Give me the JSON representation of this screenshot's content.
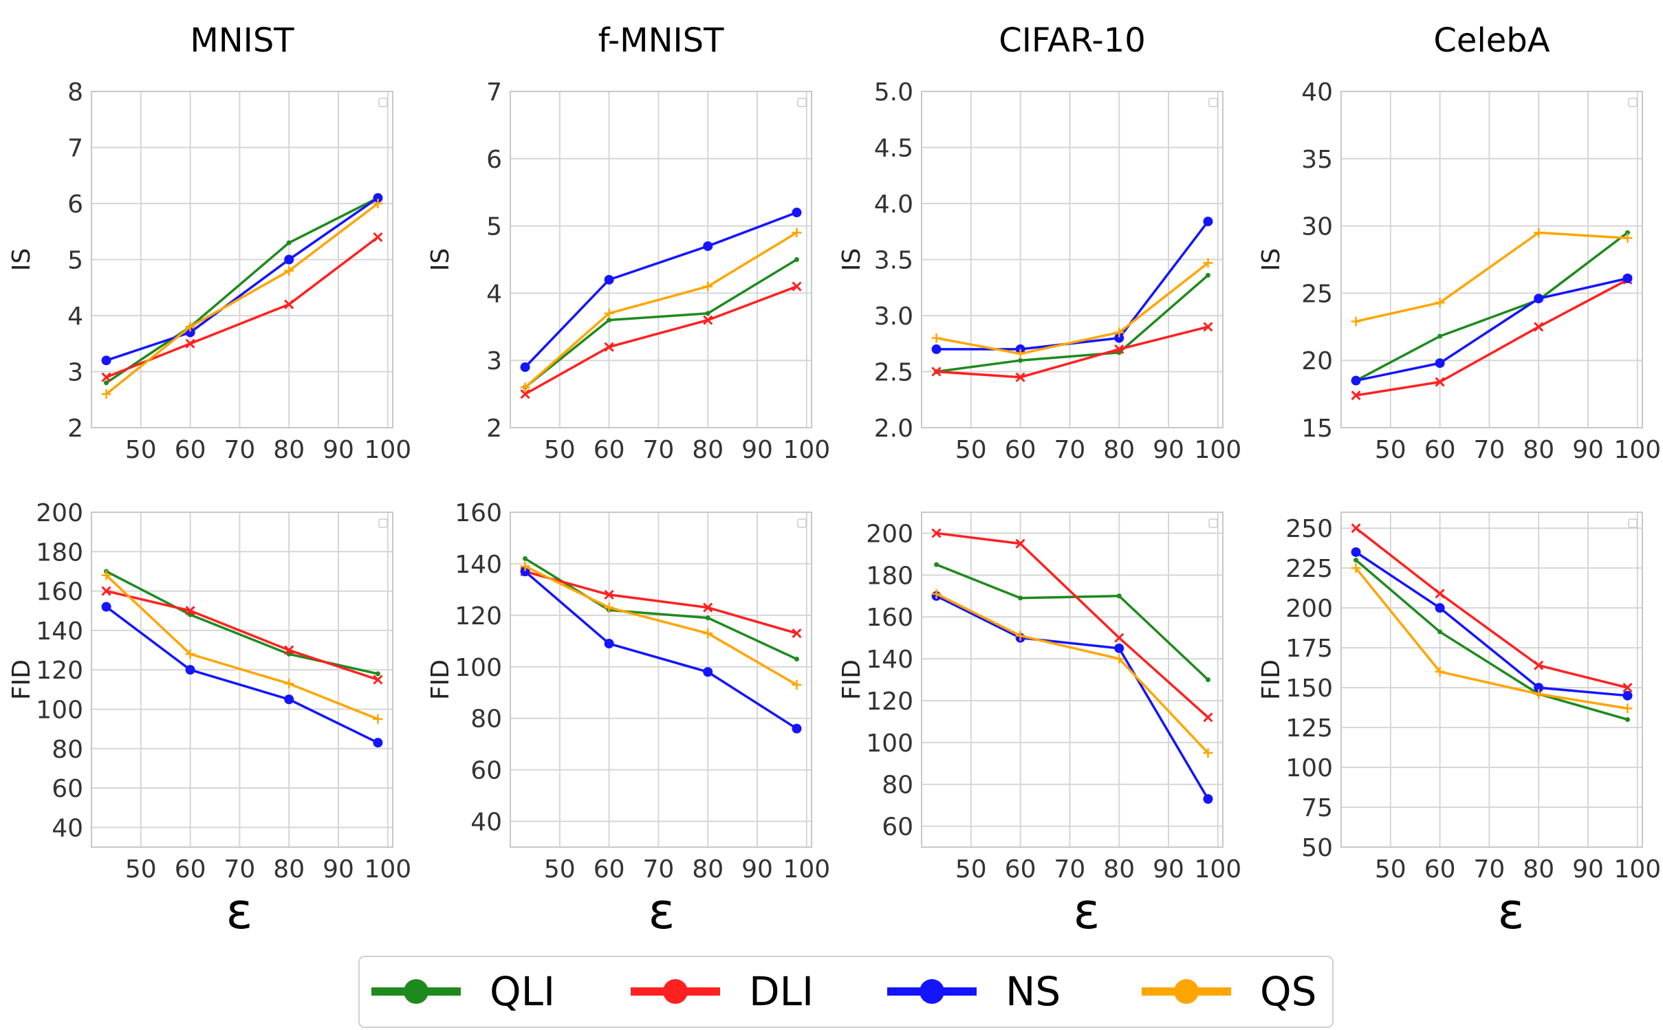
{
  "colors": {
    "QLI": "#1e8a1e",
    "DLI": "#ff2020",
    "NS": "#1414ff",
    "QS": "#ffa500",
    "grid": "#d6d6d6",
    "axis": "#c8c8c8",
    "text": "#333333"
  },
  "x_axis_symbol": "ε",
  "legend": {
    "entries": [
      "QLI",
      "DLI",
      "NS",
      "QS"
    ]
  },
  "chart_data": [
    {
      "type": "line",
      "row": 0,
      "col": 0,
      "title": "MNIST",
      "ylabel": "IS",
      "x": [
        43,
        60,
        80,
        98
      ],
      "xlim": [
        40,
        101
      ],
      "xticks": [
        50,
        60,
        70,
        80,
        90,
        100
      ],
      "ylim": [
        2,
        8
      ],
      "yticks": [
        "2",
        "3",
        "4",
        "5",
        "6",
        "7",
        "8"
      ],
      "grid": true,
      "series": [
        {
          "name": "QLI",
          "values": [
            2.8,
            3.8,
            5.3,
            6.1
          ]
        },
        {
          "name": "DLI",
          "values": [
            2.9,
            3.5,
            4.2,
            5.4
          ]
        },
        {
          "name": "NS",
          "values": [
            3.2,
            3.7,
            5.0,
            6.1
          ]
        },
        {
          "name": "QS",
          "values": [
            2.6,
            3.8,
            4.8,
            6.0
          ]
        }
      ]
    },
    {
      "type": "line",
      "row": 0,
      "col": 1,
      "title": "f-MNIST",
      "ylabel": "IS",
      "x": [
        43,
        60,
        80,
        98
      ],
      "xlim": [
        40,
        101
      ],
      "xticks": [
        50,
        60,
        70,
        80,
        90,
        100
      ],
      "ylim": [
        2,
        7
      ],
      "yticks": [
        "2",
        "3",
        "4",
        "5",
        "6",
        "7"
      ],
      "grid": true,
      "series": [
        {
          "name": "QLI",
          "values": [
            2.6,
            3.6,
            3.7,
            4.5
          ]
        },
        {
          "name": "DLI",
          "values": [
            2.5,
            3.2,
            3.6,
            4.1
          ]
        },
        {
          "name": "NS",
          "values": [
            2.9,
            4.2,
            4.7,
            5.2
          ]
        },
        {
          "name": "QS",
          "values": [
            2.6,
            3.7,
            4.1,
            4.9
          ]
        }
      ]
    },
    {
      "type": "line",
      "row": 0,
      "col": 2,
      "title": "CIFAR-10",
      "ylabel": "IS",
      "x": [
        43,
        60,
        80,
        98
      ],
      "xlim": [
        40,
        101
      ],
      "xticks": [
        50,
        60,
        70,
        80,
        90,
        100
      ],
      "ylim": [
        2.0,
        5.0
      ],
      "yticks": [
        "2.0",
        "2.5",
        "3.0",
        "3.5",
        "4.0",
        "4.5",
        "5.0"
      ],
      "grid": true,
      "series": [
        {
          "name": "QLI",
          "values": [
            2.5,
            2.6,
            2.67,
            3.36
          ]
        },
        {
          "name": "DLI",
          "values": [
            2.5,
            2.45,
            2.7,
            2.9
          ]
        },
        {
          "name": "NS",
          "values": [
            2.7,
            2.7,
            2.8,
            3.84
          ]
        },
        {
          "name": "QS",
          "values": [
            2.8,
            2.66,
            2.85,
            3.47
          ]
        }
      ]
    },
    {
      "type": "line",
      "row": 0,
      "col": 3,
      "title": "CelebA",
      "ylabel": "IS",
      "x": [
        43,
        60,
        80,
        98
      ],
      "xlim": [
        40,
        101
      ],
      "xticks": [
        50,
        60,
        70,
        80,
        90,
        100
      ],
      "ylim": [
        15,
        40
      ],
      "yticks": [
        "15",
        "20",
        "25",
        "30",
        "35",
        "40"
      ],
      "grid": true,
      "series": [
        {
          "name": "QLI",
          "values": [
            18.5,
            21.8,
            24.5,
            29.5
          ]
        },
        {
          "name": "DLI",
          "values": [
            17.4,
            18.4,
            22.5,
            26.0
          ]
        },
        {
          "name": "NS",
          "values": [
            18.5,
            19.8,
            24.6,
            26.1
          ]
        },
        {
          "name": "QS",
          "values": [
            22.9,
            24.3,
            29.5,
            29.1
          ]
        }
      ]
    },
    {
      "type": "line",
      "row": 1,
      "col": 0,
      "title": "",
      "ylabel": "FID",
      "x": [
        43,
        60,
        80,
        98
      ],
      "xlim": [
        40,
        101
      ],
      "xticks": [
        50,
        60,
        70,
        80,
        90,
        100
      ],
      "ylim": [
        30,
        200
      ],
      "yticks": [
        "40",
        "60",
        "80",
        "100",
        "120",
        "140",
        "160",
        "180",
        "200"
      ],
      "grid": true,
      "series": [
        {
          "name": "QLI",
          "values": [
            170,
            148,
            128,
            118
          ]
        },
        {
          "name": "DLI",
          "values": [
            160,
            150,
            130,
            115
          ]
        },
        {
          "name": "NS",
          "values": [
            152,
            120,
            105,
            83
          ]
        },
        {
          "name": "QS",
          "values": [
            168,
            128,
            113,
            95
          ]
        }
      ]
    },
    {
      "type": "line",
      "row": 1,
      "col": 1,
      "title": "",
      "ylabel": "FID",
      "x": [
        43,
        60,
        80,
        98
      ],
      "xlim": [
        40,
        101
      ],
      "xticks": [
        50,
        60,
        70,
        80,
        90,
        100
      ],
      "ylim": [
        30,
        160
      ],
      "yticks": [
        "40",
        "60",
        "80",
        "100",
        "120",
        "140",
        "160"
      ],
      "grid": true,
      "series": [
        {
          "name": "QLI",
          "values": [
            142,
            122,
            119,
            103
          ]
        },
        {
          "name": "DLI",
          "values": [
            137,
            128,
            123,
            113
          ]
        },
        {
          "name": "NS",
          "values": [
            137,
            109,
            98,
            76
          ]
        },
        {
          "name": "QS",
          "values": [
            139,
            123,
            113,
            93
          ]
        }
      ]
    },
    {
      "type": "line",
      "row": 1,
      "col": 2,
      "title": "",
      "ylabel": "FID",
      "x": [
        43,
        60,
        80,
        98
      ],
      "xlim": [
        40,
        101
      ],
      "xticks": [
        50,
        60,
        70,
        80,
        90,
        100
      ],
      "ylim": [
        50,
        210
      ],
      "yticks": [
        "60",
        "80",
        "100",
        "120",
        "140",
        "160",
        "180",
        "200"
      ],
      "grid": true,
      "series": [
        {
          "name": "QLI",
          "values": [
            185,
            169,
            170,
            130
          ]
        },
        {
          "name": "DLI",
          "values": [
            200,
            195,
            150,
            112
          ]
        },
        {
          "name": "NS",
          "values": [
            170,
            150,
            145,
            73
          ]
        },
        {
          "name": "QS",
          "values": [
            171,
            151,
            140,
            95
          ]
        }
      ]
    },
    {
      "type": "line",
      "row": 1,
      "col": 3,
      "title": "",
      "ylabel": "FID",
      "x": [
        43,
        60,
        80,
        98
      ],
      "xlim": [
        40,
        101
      ],
      "xticks": [
        50,
        60,
        70,
        80,
        90,
        100
      ],
      "ylim": [
        50,
        260
      ],
      "yticks": [
        "50",
        "75",
        "100",
        "125",
        "150",
        "175",
        "200",
        "225",
        "250"
      ],
      "grid": true,
      "series": [
        {
          "name": "QLI",
          "values": [
            230,
            185,
            146,
            130
          ]
        },
        {
          "name": "DLI",
          "values": [
            250,
            209,
            164,
            150
          ]
        },
        {
          "name": "NS",
          "values": [
            235,
            200,
            150,
            145
          ]
        },
        {
          "name": "QS",
          "values": [
            225,
            160,
            146,
            137
          ]
        }
      ]
    }
  ]
}
